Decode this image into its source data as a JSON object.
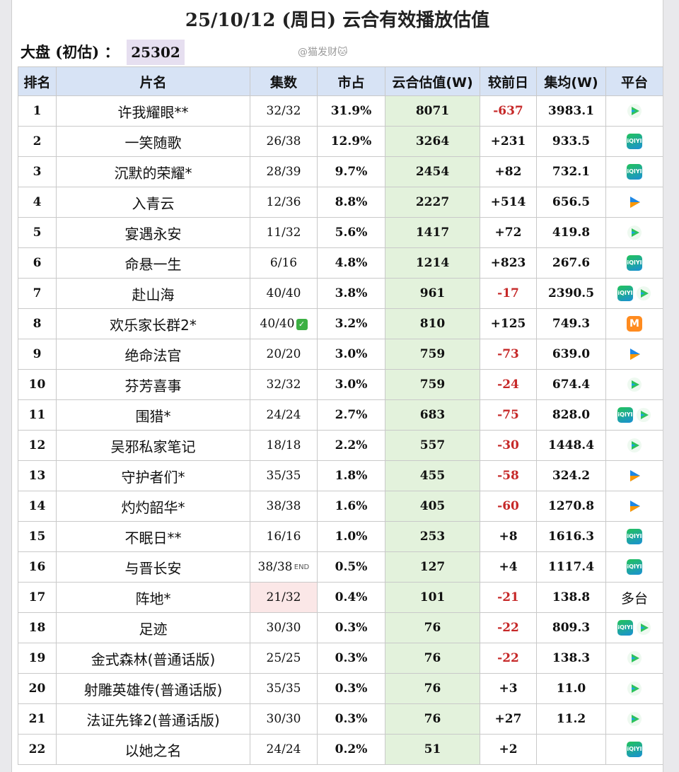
{
  "header": {
    "title": "25/10/12 (周日) 云合有效播放估值",
    "summary_label": "大盘 (初估) ：",
    "summary_value": "25302",
    "watermark": "@猫发财🐱"
  },
  "columns": [
    "排名",
    "片名",
    "集数",
    "市占",
    "云合估值(W)",
    "较前日",
    "集均(W)",
    "平台"
  ],
  "colors": {
    "header_bg": "#d7e3f5",
    "value_col_bg": "#e3f2dc",
    "negative": "#c62828"
  },
  "rows": [
    {
      "rank": "1",
      "name": "许我耀眼**",
      "episodes": "32/32",
      "share": "31.9%",
      "value": "8071",
      "change": "-637",
      "avg": "3983.1",
      "platforms": [
        "tencent-video-icon"
      ]
    },
    {
      "rank": "2",
      "name": "一笑随歌",
      "episodes": "26/38",
      "share": "12.9%",
      "value": "3264",
      "change": "+231",
      "avg": "933.5",
      "platforms": [
        "iqiyi-icon"
      ]
    },
    {
      "rank": "3",
      "name": "沉默的荣耀*",
      "episodes": "28/39",
      "share": "9.7%",
      "value": "2454",
      "change": "+82",
      "avg": "732.1",
      "platforms": [
        "iqiyi-icon"
      ]
    },
    {
      "rank": "4",
      "name": "入青云",
      "episodes": "12/36",
      "share": "8.8%",
      "value": "2227",
      "change": "+514",
      "avg": "656.5",
      "platforms": [
        "youku-icon"
      ]
    },
    {
      "rank": "5",
      "name": "宴遇永安",
      "episodes": "11/32",
      "share": "5.6%",
      "value": "1417",
      "change": "+72",
      "avg": "419.8",
      "platforms": [
        "tencent-video-icon"
      ]
    },
    {
      "rank": "6",
      "name": "命悬一生",
      "episodes": "6/16",
      "share": "4.8%",
      "value": "1214",
      "change": "+823",
      "avg": "267.6",
      "platforms": [
        "iqiyi-icon"
      ]
    },
    {
      "rank": "7",
      "name": "赴山海",
      "episodes": "40/40",
      "share": "3.8%",
      "value": "961",
      "change": "-17",
      "avg": "2390.5",
      "platforms": [
        "iqiyi-icon",
        "tencent-video-icon"
      ]
    },
    {
      "rank": "8",
      "name": "欢乐家长群2*",
      "episodes": "40/40",
      "episode_badge": "✓",
      "share": "3.2%",
      "value": "810",
      "change": "+125",
      "avg": "749.3",
      "platforms": [
        "mgtv-icon"
      ]
    },
    {
      "rank": "9",
      "name": "绝命法官",
      "episodes": "20/20",
      "share": "3.0%",
      "value": "759",
      "change": "-73",
      "avg": "639.0",
      "platforms": [
        "youku-icon"
      ]
    },
    {
      "rank": "10",
      "name": "芬芳喜事",
      "episodes": "32/32",
      "share": "3.0%",
      "value": "759",
      "change": "-24",
      "avg": "674.4",
      "platforms": [
        "tencent-video-icon"
      ]
    },
    {
      "rank": "11",
      "name": "围猎*",
      "episodes": "24/24",
      "share": "2.7%",
      "value": "683",
      "change": "-75",
      "avg": "828.0",
      "platforms": [
        "iqiyi-icon",
        "tencent-video-icon"
      ]
    },
    {
      "rank": "12",
      "name": "吴邪私家笔记",
      "episodes": "18/18",
      "share": "2.2%",
      "value": "557",
      "change": "-30",
      "avg": "1448.4",
      "platforms": [
        "tencent-video-icon"
      ]
    },
    {
      "rank": "13",
      "name": "守护者们*",
      "episodes": "35/35",
      "share": "1.8%",
      "value": "455",
      "change": "-58",
      "avg": "324.2",
      "platforms": [
        "youku-icon"
      ]
    },
    {
      "rank": "14",
      "name": "灼灼韶华*",
      "episodes": "38/38",
      "share": "1.6%",
      "value": "405",
      "change": "-60",
      "avg": "1270.8",
      "platforms": [
        "youku-icon"
      ]
    },
    {
      "rank": "15",
      "name": "不眠日**",
      "episodes": "16/16",
      "share": "1.0%",
      "value": "253",
      "change": "+8",
      "avg": "1616.3",
      "platforms": [
        "iqiyi-icon"
      ]
    },
    {
      "rank": "16",
      "name": "与晋长安",
      "episodes": "38/38",
      "episode_badge": "END",
      "share": "0.5%",
      "value": "127",
      "change": "+4",
      "avg": "1117.4",
      "platforms": [
        "iqiyi-icon"
      ]
    },
    {
      "rank": "17",
      "name": "阵地*",
      "episodes": "21/32",
      "share": "0.4%",
      "value": "101",
      "change": "-21",
      "avg": "138.8",
      "platform_text": "多台",
      "platforms": []
    },
    {
      "rank": "18",
      "name": "足迹",
      "episodes": "30/30",
      "share": "0.3%",
      "value": "76",
      "change": "-22",
      "avg": "809.3",
      "platforms": [
        "iqiyi-icon",
        "tencent-video-icon"
      ]
    },
    {
      "rank": "19",
      "name": "金式森林(普通话版)",
      "episodes": "25/25",
      "share": "0.3%",
      "value": "76",
      "change": "-22",
      "avg": "138.3",
      "platforms": [
        "tencent-video-icon"
      ]
    },
    {
      "rank": "20",
      "name": "射雕英雄传(普通话版)",
      "episodes": "35/35",
      "share": "0.3%",
      "value": "76",
      "change": "+3",
      "avg": "11.0",
      "platforms": [
        "tencent-video-icon"
      ]
    },
    {
      "rank": "21",
      "name": "法证先锋2(普通话版)",
      "episodes": "30/30",
      "share": "0.3%",
      "value": "76",
      "change": "+27",
      "avg": "11.2",
      "platforms": [
        "tencent-video-icon"
      ]
    },
    {
      "rank": "22",
      "name": "以她之名",
      "episodes": "24/24",
      "share": "0.2%",
      "value": "51",
      "change": "+2",
      "avg": "",
      "platforms": [
        "iqiyi-icon"
      ]
    }
  ]
}
